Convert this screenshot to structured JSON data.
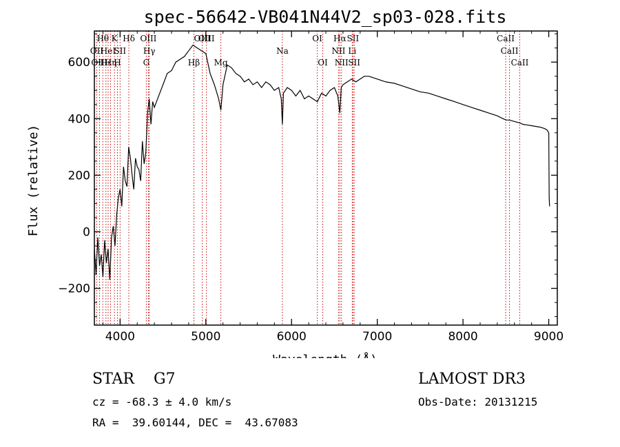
{
  "chart_data": {
    "type": "line",
    "title": "spec-56642-VB041N44V2_sp03-028.fits",
    "xlabel": "Wavelength (Å)",
    "ylabel": "Flux (relative)",
    "xlim": [
      3700,
      9100
    ],
    "ylim": [
      -330,
      710
    ],
    "xticks": [
      4000,
      5000,
      6000,
      7000,
      8000,
      9000
    ],
    "yticks": [
      -200,
      0,
      200,
      400,
      600
    ],
    "grid": false,
    "line_color": "#000000",
    "marker_color": "#cc0000",
    "spectrum": {
      "x": [
        3700,
        3720,
        3740,
        3760,
        3780,
        3800,
        3820,
        3840,
        3860,
        3880,
        3900,
        3920,
        3940,
        3960,
        3980,
        4000,
        4020,
        4040,
        4060,
        4080,
        4100,
        4120,
        4140,
        4160,
        4180,
        4200,
        4220,
        4240,
        4260,
        4280,
        4300,
        4320,
        4340,
        4360,
        4380,
        4400,
        4450,
        4500,
        4550,
        4600,
        4650,
        4700,
        4750,
        4800,
        4850,
        4900,
        4950,
        5000,
        5050,
        5100,
        5150,
        5175,
        5200,
        5250,
        5300,
        5350,
        5400,
        5450,
        5500,
        5550,
        5600,
        5650,
        5700,
        5750,
        5800,
        5850,
        5880,
        5893,
        5905,
        5950,
        6000,
        6050,
        6100,
        6150,
        6200,
        6250,
        6300,
        6350,
        6400,
        6450,
        6500,
        6540,
        6563,
        6580,
        6600,
        6650,
        6700,
        6750,
        6800,
        6850,
        6900,
        6950,
        7000,
        7100,
        7200,
        7300,
        7400,
        7500,
        7600,
        7700,
        7800,
        7900,
        8000,
        8100,
        8200,
        8300,
        8400,
        8500,
        8542,
        8600,
        8662,
        8700,
        8800,
        8900,
        8950,
        8980,
        9000,
        9005,
        9010
      ],
      "y": [
        -60,
        -150,
        -20,
        -120,
        -80,
        -160,
        -30,
        -110,
        -60,
        -170,
        -20,
        20,
        -50,
        60,
        120,
        150,
        90,
        230,
        180,
        160,
        300,
        260,
        200,
        150,
        260,
        230,
        220,
        180,
        320,
        240,
        280,
        420,
        470,
        380,
        460,
        440,
        480,
        520,
        560,
        570,
        600,
        610,
        620,
        640,
        660,
        650,
        640,
        630,
        560,
        520,
        470,
        430,
        520,
        590,
        580,
        560,
        550,
        530,
        540,
        520,
        530,
        510,
        530,
        520,
        500,
        510,
        470,
        380,
        490,
        510,
        500,
        480,
        500,
        470,
        480,
        470,
        460,
        490,
        480,
        500,
        510,
        480,
        420,
        510,
        520,
        530,
        540,
        530,
        540,
        550,
        550,
        545,
        540,
        530,
        525,
        515,
        505,
        495,
        490,
        480,
        470,
        460,
        450,
        440,
        430,
        420,
        410,
        395,
        395,
        390,
        385,
        380,
        375,
        370,
        365,
        360,
        350,
        120,
        90
      ]
    },
    "lines": [
      {
        "label": "Hθ",
        "x": 3798,
        "row": 0
      },
      {
        "label": "OII",
        "x": 3727,
        "row": 1
      },
      {
        "label": "OIII",
        "x": 3760,
        "row": 2
      },
      {
        "label": "Hε",
        "x": 3835,
        "row": 2
      },
      {
        "label": "Hη",
        "x": 3889,
        "row": 2
      },
      {
        "label": "HeI",
        "x": 3860,
        "row": 1
      },
      {
        "label": "K",
        "x": 3934,
        "row": 0
      },
      {
        "label": "H",
        "x": 3969,
        "row": 2
      },
      {
        "label": "SII",
        "x": 4000,
        "row": 1
      },
      {
        "label": "Hδ",
        "x": 4102,
        "row": 0
      },
      {
        "label": "OIII",
        "x": 4330,
        "row": 0
      },
      {
        "label": "Hγ",
        "x": 4340,
        "row": 1
      },
      {
        "label": "G",
        "x": 4306,
        "row": 2
      },
      {
        "label": "Hβ",
        "x": 4861,
        "row": 2
      },
      {
        "label": "OIII",
        "x": 4959,
        "row": 0
      },
      {
        "label": "OIII",
        "x": 5007,
        "row": 0
      },
      {
        "label": "Mg",
        "x": 5175,
        "row": 2
      },
      {
        "label": "Na",
        "x": 5893,
        "row": 1
      },
      {
        "label": "OI",
        "x": 6300,
        "row": 0
      },
      {
        "label": "OI",
        "x": 6364,
        "row": 2
      },
      {
        "label": "Hα",
        "x": 6563,
        "row": 0
      },
      {
        "label": "NII",
        "x": 6548,
        "row": 1
      },
      {
        "label": "NII",
        "x": 6583,
        "row": 2
      },
      {
        "label": "SII",
        "x": 6716,
        "row": 0
      },
      {
        "label": "Li",
        "x": 6708,
        "row": 1
      },
      {
        "label": "SII",
        "x": 6731,
        "row": 2
      },
      {
        "label": "CaII",
        "x": 8498,
        "row": 0
      },
      {
        "label": "CaII",
        "x": 8542,
        "row": 1
      },
      {
        "label": "CaII",
        "x": 8662,
        "row": 2
      }
    ]
  },
  "info": {
    "class": "STAR",
    "subclass": "G7",
    "cz": "cz = -68.3 ± 4.0 km/s",
    "coords": "RA =  39.60144, DEC =  43.67083",
    "survey": "LAMOST DR3",
    "obsdate": "Obs-Date: 20131215"
  }
}
